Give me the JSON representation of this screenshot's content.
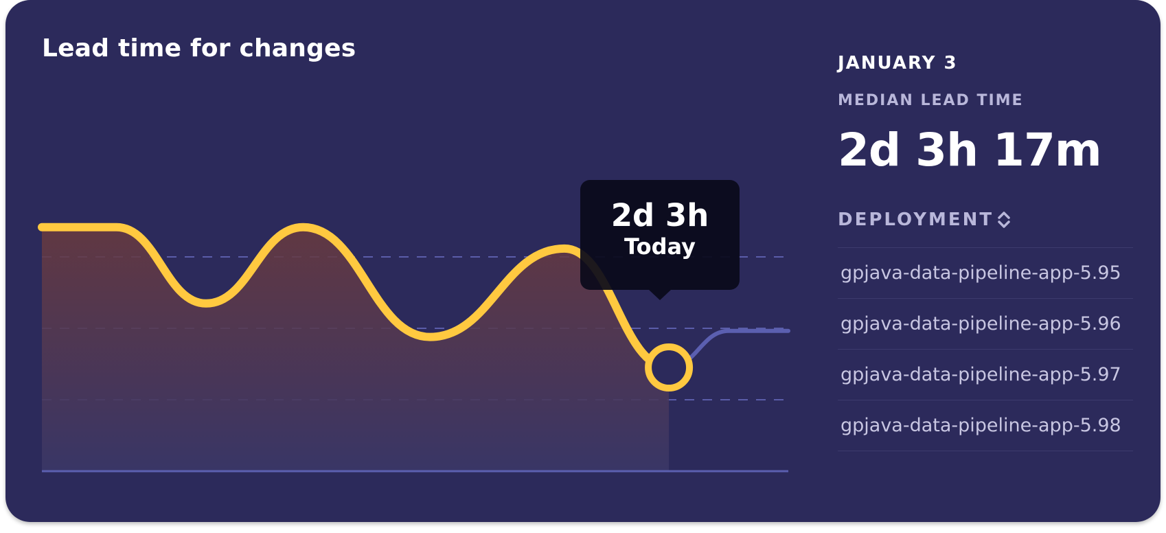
{
  "card": {
    "title": "Lead time for changes"
  },
  "tooltip": {
    "value": "2d 3h",
    "label": "Today"
  },
  "details": {
    "date": "JANUARY 3",
    "median_label": "MEDIAN LEAD TIME",
    "median_value": "2d 3h 17m",
    "deployment_header": "DEPLOYMENT",
    "sort_icon": "sort-updown-icon",
    "deployments": [
      "gpjava-data-pipeline-app-5.95",
      "gpjava-data-pipeline-app-5.96",
      "gpjava-data-pipeline-app-5.97",
      "gpjava-data-pipeline-app-5.98"
    ]
  },
  "colors": {
    "card_background": "#2c2a5b",
    "line_highlight": "#ffc940",
    "line_future": "#5b5fb0",
    "grid": "#6b6ec4",
    "tooltip_background": "#0a0a1a"
  },
  "chart_data": {
    "type": "line",
    "title": "Lead time for changes",
    "xlabel": "",
    "ylabel": "",
    "grid": true,
    "dashed_gridlines": 3,
    "y_ticks_shown": false,
    "x_ticks_shown": false,
    "selected_point": {
      "label": "Today",
      "value": "2d 3h"
    },
    "series": [
      {
        "highlighted": true,
        "points": [
          [
            0,
            0.8
          ],
          [
            1,
            0.8
          ],
          [
            2.2,
            0.55
          ],
          [
            3.5,
            0.8
          ],
          [
            5.2,
            0.44
          ],
          [
            7,
            0.73
          ],
          [
            8.4,
            0.34
          ]
        ]
      },
      {
        "highlighted": false,
        "points": [
          [
            8.4,
            0.34
          ],
          [
            9.2,
            0.46
          ],
          [
            10,
            0.46
          ]
        ]
      }
    ],
    "xlim": [
      0,
      10
    ],
    "ylim": [
      0,
      1
    ]
  }
}
